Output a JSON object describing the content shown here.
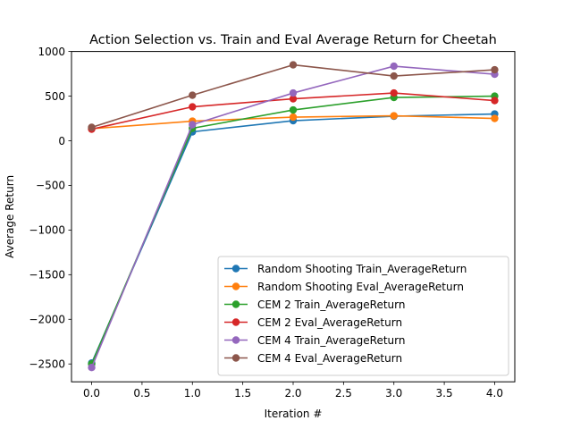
{
  "chart_data": {
    "type": "line",
    "title": "Action Selection vs. Train and Eval Average Return for Cheetah",
    "xlabel": "Iteration #",
    "ylabel": "Average Return",
    "xlim": [
      -0.2,
      4.2
    ],
    "ylim": [
      -2700,
      1000
    ],
    "xticks": [
      0.0,
      0.5,
      1.0,
      1.5,
      2.0,
      2.5,
      3.0,
      3.5,
      4.0
    ],
    "xtick_labels": [
      "0.0",
      "0.5",
      "1.0",
      "1.5",
      "2.0",
      "2.5",
      "3.0",
      "3.5",
      "4.0"
    ],
    "yticks": [
      -2500,
      -2000,
      -1500,
      -1000,
      -500,
      0,
      500,
      1000
    ],
    "ytick_labels": [
      "−2500",
      "−2000",
      "−1500",
      "−1000",
      "−500",
      "0",
      "500",
      "1000"
    ],
    "grid": false,
    "legend_position": "lower-right",
    "x": [
      0,
      1,
      2,
      3,
      4
    ],
    "series": [
      {
        "name": "Random Shooting Train_AverageReturn",
        "color": "#1f77b4",
        "values": [
          -2490,
          100,
          225,
          275,
          300
        ]
      },
      {
        "name": "Random Shooting Eval_AverageReturn",
        "color": "#ff7f0e",
        "values": [
          135,
          220,
          265,
          280,
          250
        ]
      },
      {
        "name": "CEM 2 Train_AverageReturn",
        "color": "#2ca02c",
        "values": [
          -2500,
          140,
          345,
          485,
          500
        ]
      },
      {
        "name": "CEM 2 Eval_AverageReturn",
        "color": "#d62728",
        "values": [
          130,
          380,
          470,
          535,
          450
        ]
      },
      {
        "name": "CEM 4 Train_AverageReturn",
        "color": "#9467bd",
        "values": [
          -2540,
          180,
          535,
          835,
          745
        ]
      },
      {
        "name": "CEM 4 Eval_AverageReturn",
        "color": "#8c564b",
        "values": [
          150,
          510,
          850,
          725,
          795
        ]
      }
    ]
  }
}
